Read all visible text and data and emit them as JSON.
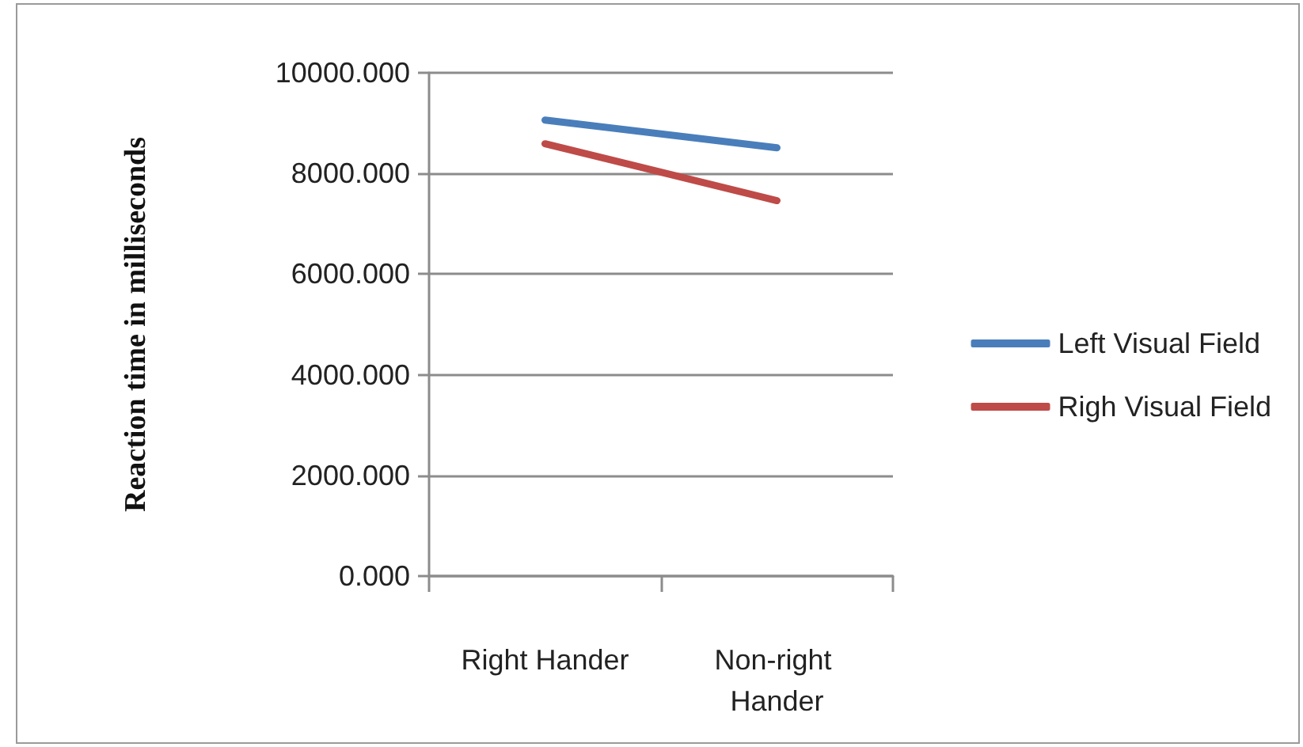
{
  "chart_data": {
    "type": "line",
    "ylabel": "Reaction time in milliseconds",
    "categories": [
      "Right Hander",
      "Non-right Hander"
    ],
    "series": [
      {
        "name": "Left Visual Field",
        "color": "#4a7ebb",
        "values": [
          9060,
          8510
        ]
      },
      {
        "name": "Righ Visual Field",
        "color": "#be4b48",
        "values": [
          8590,
          7460
        ]
      }
    ],
    "ylim": [
      0,
      10000
    ],
    "yticks": [
      {
        "value": 0,
        "label": "0.000"
      },
      {
        "value": 2000,
        "label": "2000.000"
      },
      {
        "value": 4000,
        "label": "4000.000"
      },
      {
        "value": 6000,
        "label": "6000.000"
      },
      {
        "value": 8000,
        "label": "8000.000"
      },
      {
        "value": 10000,
        "label": "10000.000"
      }
    ],
    "grid": "y",
    "legend": "right",
    "marker": "none",
    "line_style": "solid"
  }
}
